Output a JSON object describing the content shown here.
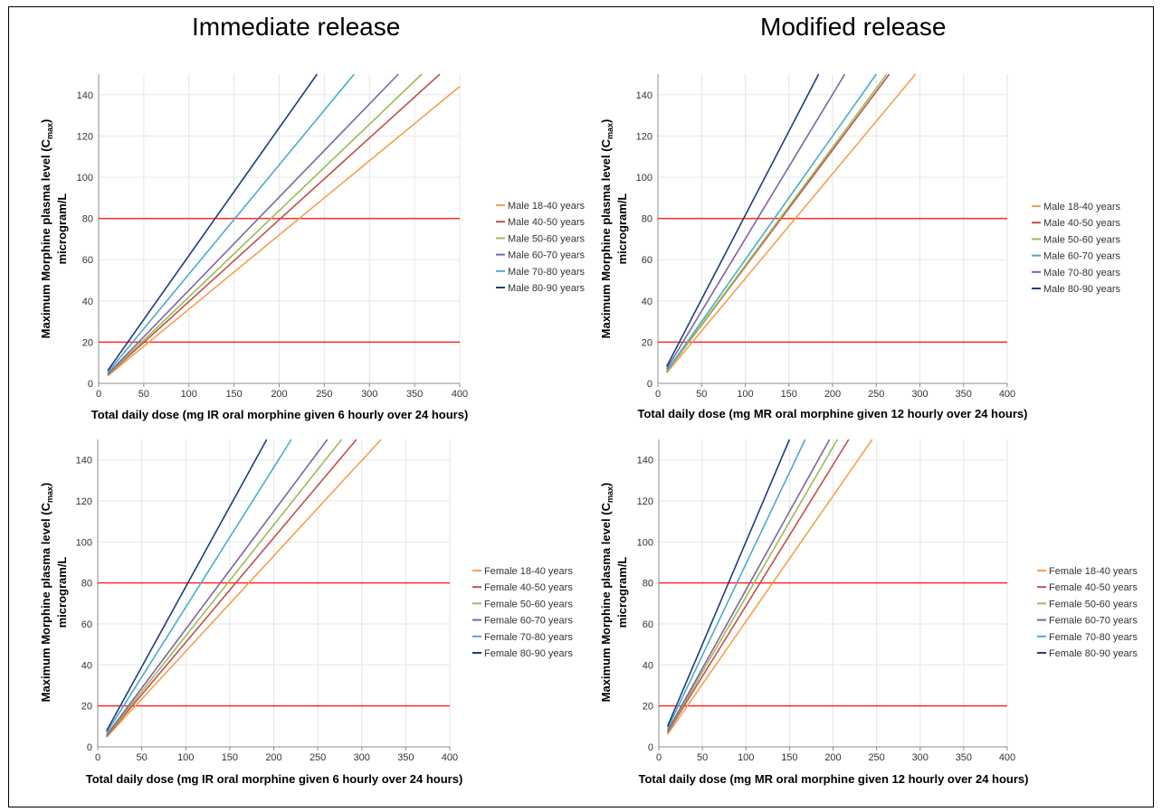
{
  "titles": {
    "left": "Immediate release",
    "right": "Modified release"
  },
  "colors": {
    "reference_line": "#ff2a2a",
    "grid": "#e6e6e6",
    "orange": "#f4a04e",
    "red": "#c0504d",
    "green": "#9bbb59",
    "purple": "#8064a2",
    "cyan": "#4bacc6",
    "navy": "#1f3d7a"
  },
  "chart_data": [
    {
      "type": "line",
      "xlabel": "Total daily dose (mg IR oral morphine given 6 hourly over 24 hours)",
      "ylabel_main": "Maximum Morphine plasma level (C",
      "ylabel_sub": "max",
      "ylabel_end": ")",
      "ylabel_line2": "microgram/L",
      "xlim": [
        0,
        400
      ],
      "ylim": [
        0,
        150
      ],
      "xticks": [
        0,
        50,
        100,
        150,
        200,
        250,
        300,
        350,
        400
      ],
      "yticks": [
        0,
        20,
        40,
        60,
        80,
        100,
        120,
        140
      ],
      "grid": true,
      "legend_position": "right",
      "reference_lines": [
        20,
        80
      ],
      "series": [
        {
          "name": "Male 18-40 years",
          "color": "orange",
          "x": [
            10,
            400
          ],
          "y": [
            3.6,
            144
          ]
        },
        {
          "name": "Male 40-50 years",
          "color": "red",
          "x": [
            10,
            378
          ],
          "y": [
            4,
            150
          ]
        },
        {
          "name": "Male 50-60 years",
          "color": "green",
          "x": [
            10,
            358
          ],
          "y": [
            4.2,
            150
          ]
        },
        {
          "name": "Male 60-70 years",
          "color": "purple",
          "x": [
            10,
            332
          ],
          "y": [
            4.5,
            150
          ]
        },
        {
          "name": "Male 70-80 years",
          "color": "cyan",
          "x": [
            10,
            283
          ],
          "y": [
            5.3,
            150
          ]
        },
        {
          "name": "Male 80-90 years",
          "color": "navy",
          "x": [
            10,
            242
          ],
          "y": [
            6.2,
            150
          ]
        }
      ]
    },
    {
      "type": "line",
      "xlabel": "Total daily dose (mg MR oral morphine given 12 hourly over 24 hours)",
      "ylabel_main": "Maximum Morphine plasma level (C",
      "ylabel_sub": "max",
      "ylabel_end": ")",
      "ylabel_line2": "microgram/L",
      "xlim": [
        0,
        400
      ],
      "ylim": [
        0,
        150
      ],
      "xticks": [
        0,
        50,
        100,
        150,
        200,
        250,
        300,
        350,
        400
      ],
      "yticks": [
        0,
        20,
        40,
        60,
        80,
        100,
        120,
        140
      ],
      "grid": true,
      "legend_position": "right",
      "reference_lines": [
        20,
        80
      ],
      "series": [
        {
          "name": "Male 18-40 years",
          "color": "orange",
          "x": [
            10,
            295
          ],
          "y": [
            5.1,
            150
          ]
        },
        {
          "name": "Male 40-50 years",
          "color": "red",
          "x": [
            10,
            265
          ],
          "y": [
            5.7,
            150
          ]
        },
        {
          "name": "Male 50-60 years",
          "color": "green",
          "x": [
            10,
            262
          ],
          "y": [
            5.7,
            150
          ]
        },
        {
          "name": "Male 60-70 years",
          "color": "cyan",
          "x": [
            10,
            250
          ],
          "y": [
            6,
            150
          ]
        },
        {
          "name": "Male 70-80 years",
          "color": "purple",
          "x": [
            10,
            214
          ],
          "y": [
            7,
            150
          ]
        },
        {
          "name": "Male 80-90 years",
          "color": "navy",
          "x": [
            10,
            184
          ],
          "y": [
            8.2,
            150
          ]
        }
      ]
    },
    {
      "type": "line",
      "xlabel": "Total daily dose (mg IR oral morphine given 6 hourly over 24 hours)",
      "ylabel_main": "Maximum Morphine plasma level (C",
      "ylabel_sub": "max",
      "ylabel_end": ")",
      "ylabel_line2": "microgram/L",
      "xlim": [
        0,
        400
      ],
      "ylim": [
        0,
        150
      ],
      "xticks": [
        0,
        50,
        100,
        150,
        200,
        250,
        300,
        350,
        400
      ],
      "yticks": [
        0,
        20,
        40,
        60,
        80,
        100,
        120,
        140
      ],
      "grid": true,
      "legend_position": "right",
      "reference_lines": [
        20,
        80
      ],
      "series": [
        {
          "name": "Female 18-40 years",
          "color": "orange",
          "x": [
            10,
            322
          ],
          "y": [
            4.7,
            150
          ]
        },
        {
          "name": "Female 40-50 years",
          "color": "red",
          "x": [
            10,
            294
          ],
          "y": [
            5.1,
            150
          ]
        },
        {
          "name": "Female 50-60 years",
          "color": "green",
          "x": [
            10,
            277
          ],
          "y": [
            5.4,
            150
          ]
        },
        {
          "name": "Female 60-70 years",
          "color": "purple",
          "x": [
            10,
            261
          ],
          "y": [
            5.7,
            150
          ]
        },
        {
          "name": "Female 70-80 years",
          "color": "cyan",
          "x": [
            10,
            220
          ],
          "y": [
            6.8,
            150
          ]
        },
        {
          "name": "Female 80-90 years",
          "color": "navy",
          "x": [
            10,
            192
          ],
          "y": [
            7.8,
            150
          ]
        }
      ]
    },
    {
      "type": "line",
      "xlabel": "Total daily dose (mg MR oral morphine given 12 hourly over 24 hours)",
      "ylabel_main": "Maximum Morphine plasma level (C",
      "ylabel_sub": "max",
      "ylabel_end": ")",
      "ylabel_line2": "microgram/L",
      "xlim": [
        0,
        400
      ],
      "ylim": [
        0,
        150
      ],
      "xticks": [
        0,
        50,
        100,
        150,
        200,
        250,
        300,
        350,
        400
      ],
      "yticks": [
        0,
        20,
        40,
        60,
        80,
        100,
        120,
        140
      ],
      "grid": true,
      "legend_position": "right",
      "reference_lines": [
        20,
        80
      ],
      "series": [
        {
          "name": "Female 18-40 years",
          "color": "orange",
          "x": [
            10,
            245
          ],
          "y": [
            6.1,
            150
          ]
        },
        {
          "name": "Female 40-50 years",
          "color": "red",
          "x": [
            10,
            218
          ],
          "y": [
            6.9,
            150
          ]
        },
        {
          "name": "Female 50-60 years",
          "color": "green",
          "x": [
            10,
            205
          ],
          "y": [
            7.3,
            150
          ]
        },
        {
          "name": "Female 60-70 years",
          "color": "purple",
          "x": [
            10,
            196
          ],
          "y": [
            7.7,
            150
          ]
        },
        {
          "name": "Female 70-80 years",
          "color": "cyan",
          "x": [
            10,
            168
          ],
          "y": [
            8.9,
            150
          ]
        },
        {
          "name": "Female 80-90 years",
          "color": "navy",
          "x": [
            10,
            150
          ],
          "y": [
            10,
            150
          ]
        }
      ]
    }
  ]
}
